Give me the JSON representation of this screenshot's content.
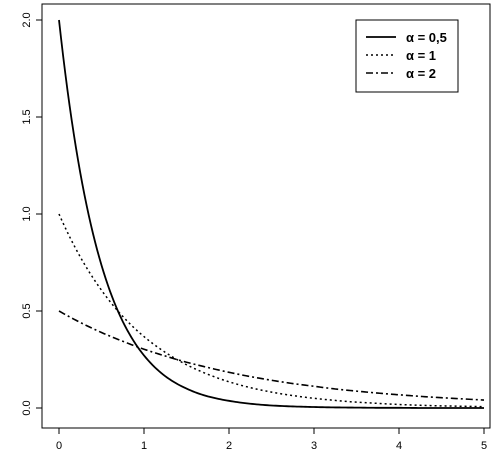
{
  "chart_data": {
    "type": "line",
    "title": "",
    "xlabel": "",
    "ylabel": "",
    "xlim": [
      0,
      5
    ],
    "ylim": [
      0,
      2
    ],
    "x_ticks": [
      0,
      1,
      2,
      3,
      4,
      5
    ],
    "y_ticks": [
      0,
      0.5,
      1,
      1.5,
      2
    ],
    "x_tick_labels": [
      "0",
      "1",
      "2",
      "3",
      "4",
      "5"
    ],
    "y_tick_labels": [
      "0.0",
      "0.5",
      "1.0",
      "1.5",
      "2.0"
    ],
    "grid": false,
    "legend_position": "top-right",
    "x": [
      0,
      0.25,
      0.5,
      0.75,
      1,
      1.25,
      1.5,
      1.75,
      2,
      2.25,
      2.5,
      2.75,
      3,
      3.25,
      3.5,
      3.75,
      4,
      4.25,
      4.5,
      4.75,
      5
    ],
    "series": [
      {
        "name": "α = 0,5",
        "style": "solid",
        "values": [
          2.0,
          1.213,
          0.736,
          0.446,
          0.271,
          0.164,
          0.1,
          0.06,
          0.037,
          0.022,
          0.013,
          0.008,
          0.005,
          0.003,
          0.002,
          0.001,
          0.001,
          0.0,
          0.0,
          0.0,
          0.0
        ]
      },
      {
        "name": "α = 1",
        "style": "dotted",
        "values": [
          1.0,
          0.779,
          0.607,
          0.472,
          0.368,
          0.287,
          0.223,
          0.174,
          0.135,
          0.105,
          0.082,
          0.064,
          0.05,
          0.039,
          0.03,
          0.024,
          0.018,
          0.014,
          0.011,
          0.009,
          0.007
        ]
      },
      {
        "name": "α = 2",
        "style": "dashdot",
        "values": [
          0.5,
          0.441,
          0.389,
          0.344,
          0.303,
          0.268,
          0.236,
          0.209,
          0.184,
          0.162,
          0.143,
          0.126,
          0.112,
          0.098,
          0.087,
          0.077,
          0.068,
          0.06,
          0.053,
          0.047,
          0.041
        ]
      }
    ]
  }
}
